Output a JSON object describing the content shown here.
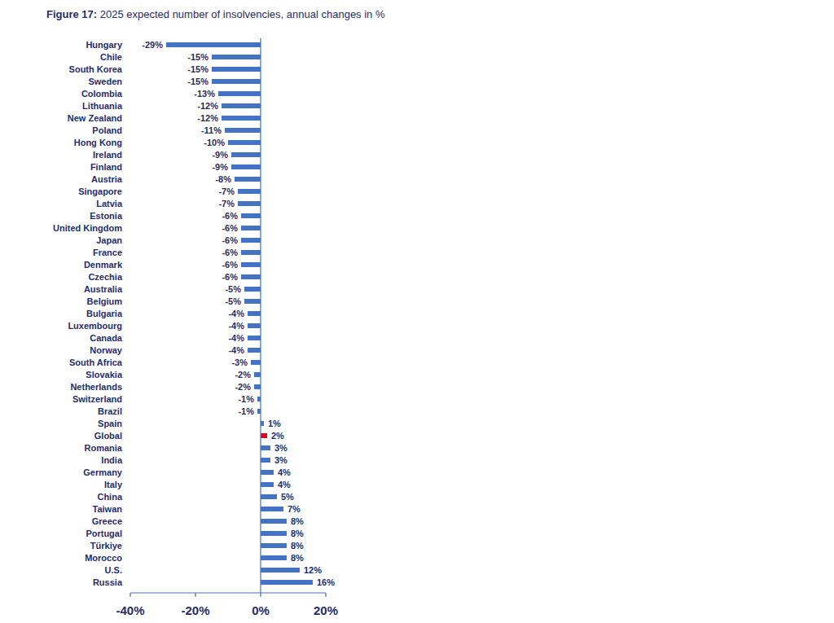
{
  "chart_data": {
    "type": "bar",
    "orientation": "horizontal",
    "title": "Figure 17: 2025 expected number of insolvencies, annual changes in %",
    "categories": [
      "Hungary",
      "Chile",
      "South Korea",
      "Sweden",
      "Colombia",
      "Lithuania",
      "New Zealand",
      "Poland",
      "Hong Kong",
      "Ireland",
      "Finland",
      "Austria",
      "Singapore",
      "Latvia",
      "Estonia",
      "United Kingdom",
      "Japan",
      "France",
      "Denmark",
      "Czechia",
      "Australia",
      "Belgium",
      "Bulgaria",
      "Luxembourg",
      "Canada",
      "Norway",
      "South Africa",
      "Slovakia",
      "Netherlands",
      "Switzerland",
      "Brazil",
      "Spain",
      "Global",
      "Romania",
      "India",
      "Germany",
      "Italy",
      "China",
      "Taiwan",
      "Greece",
      "Portugal",
      "Türkiye",
      "Morocco",
      "U.S.",
      "Russia"
    ],
    "values": [
      -29,
      -15,
      -15,
      -15,
      -13,
      -12,
      -12,
      -11,
      -10,
      -9,
      -9,
      -8,
      -7,
      -7,
      -6,
      -6,
      -6,
      -6,
      -6,
      -6,
      -5,
      -5,
      -4,
      -4,
      -4,
      -4,
      -3,
      -2,
      -2,
      -1,
      -1,
      1,
      2,
      3,
      3,
      4,
      4,
      5,
      7,
      8,
      8,
      8,
      8,
      12,
      16
    ],
    "value_labels": [
      "-29%",
      "-15%",
      "-15%",
      "-15%",
      "-13%",
      "-12%",
      "-12%",
      "-11%",
      "-10%",
      "-9%",
      "-9%",
      "-8%",
      "-7%",
      "-7%",
      "-6%",
      "-6%",
      "-6%",
      "-6%",
      "-6%",
      "-6%",
      "-5%",
      "-5%",
      "-4%",
      "-4%",
      "-4%",
      "-4%",
      "-3%",
      "-2%",
      "-2%",
      "-1%",
      "-1%",
      "1%",
      "2%",
      "3%",
      "3%",
      "4%",
      "4%",
      "5%",
      "7%",
      "8%",
      "8%",
      "8%",
      "8%",
      "12%",
      "16%"
    ],
    "colors": [
      "#4472c4",
      "#4472c4",
      "#4472c4",
      "#4472c4",
      "#4472c4",
      "#4472c4",
      "#4472c4",
      "#4472c4",
      "#4472c4",
      "#4472c4",
      "#4472c4",
      "#4472c4",
      "#4472c4",
      "#4472c4",
      "#4472c4",
      "#4472c4",
      "#4472c4",
      "#4472c4",
      "#4472c4",
      "#4472c4",
      "#4472c4",
      "#4472c4",
      "#4472c4",
      "#4472c4",
      "#4472c4",
      "#4472c4",
      "#4472c4",
      "#4472c4",
      "#4472c4",
      "#4472c4",
      "#4472c4",
      "#4472c4",
      "#e2001a",
      "#4472c4",
      "#4472c4",
      "#4472c4",
      "#4472c4",
      "#4472c4",
      "#4472c4",
      "#4472c4",
      "#4472c4",
      "#4472c4",
      "#4472c4",
      "#4472c4",
      "#4472c4"
    ],
    "xlim": [
      -40,
      20
    ],
    "xticks": [
      {
        "value": -40,
        "label": "-40%"
      },
      {
        "value": -20,
        "label": "-20%"
      },
      {
        "value": 0,
        "label": "0%"
      },
      {
        "value": 20,
        "label": "20%"
      }
    ],
    "grid": false,
    "data_labels": true
  }
}
